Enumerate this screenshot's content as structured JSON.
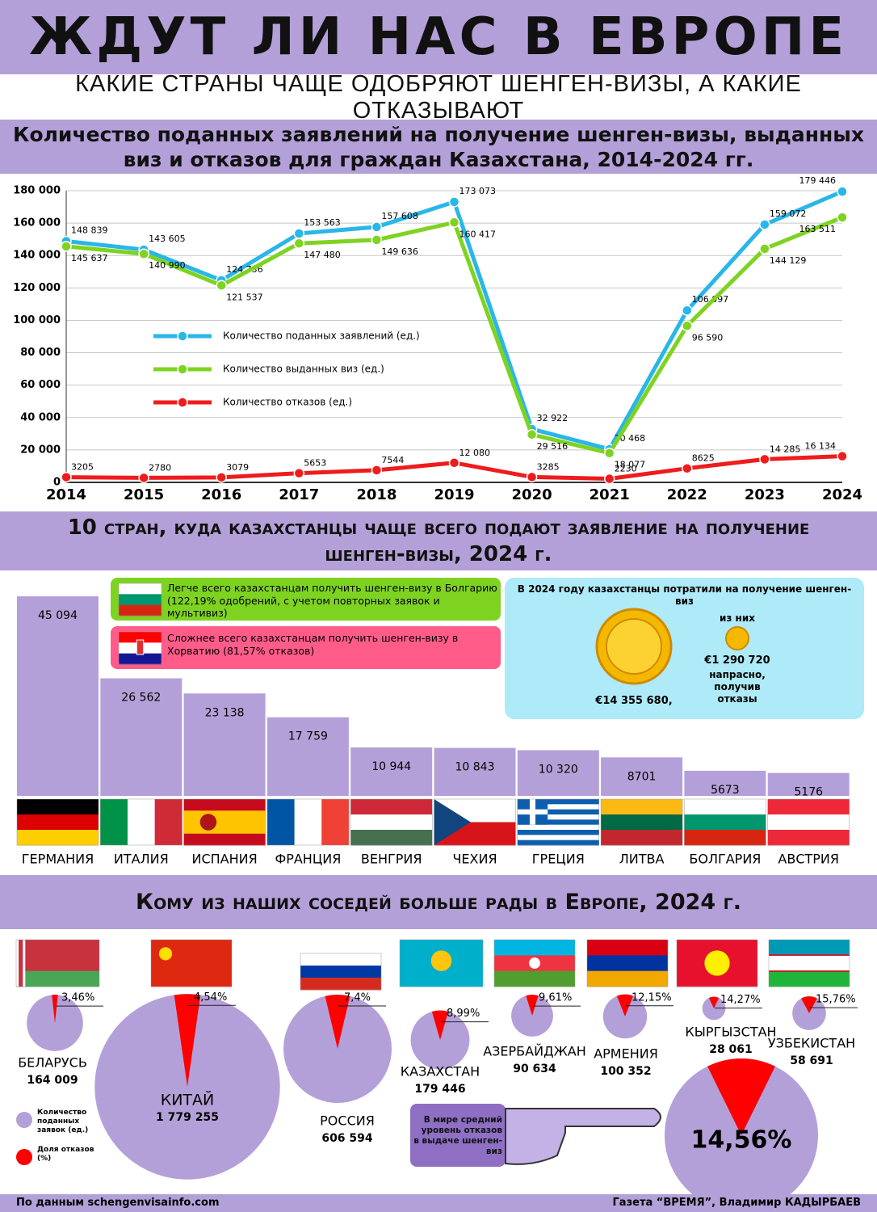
{
  "header": {
    "title": "ЖДУТ ЛИ НАС В ЕВРОПЕ",
    "subtitle": "КАКИЕ СТРАНЫ ЧАЩЕ ОДОБРЯЮТ ШЕНГЕН-ВИЗЫ, А КАКИЕ ОТКАЗЫВАЮТ"
  },
  "chart_data": [
    {
      "type": "line",
      "title": "Количество поданных заявлений на получение шенген-визы, выданных виз и отказов для граждан Казахстана, 2014-2024 гг.",
      "categories": [
        "2014",
        "2015",
        "2016",
        "2017",
        "2018",
        "2019",
        "2020",
        "2021",
        "2022",
        "2023",
        "2024"
      ],
      "series": [
        {
          "name": "Количество поданных заявлений (ед.)",
          "color": "#29b6e8",
          "values": [
            148839,
            143605,
            124736,
            153563,
            157608,
            173073,
            32922,
            20468,
            106097,
            159072,
            179446
          ],
          "value_labels": [
            "148 839",
            "143 605",
            "124 736",
            "153 563",
            "157 608",
            "173 073",
            "32 922",
            "20 468",
            "106 097",
            "159 072",
            "179 446"
          ]
        },
        {
          "name": "Количество выданных виз (ед.)",
          "color": "#7ed321",
          "values": [
            145637,
            140990,
            121537,
            147480,
            149636,
            160417,
            29516,
            18077,
            96590,
            144129,
            163511
          ],
          "value_labels": [
            "145 637",
            "140 990",
            "121 537",
            "147 480",
            "149 636",
            "160 417",
            "29 516",
            "18 077",
            "96 590",
            "144 129",
            "163 511"
          ]
        },
        {
          "name": "Количество отказов (ед.)",
          "color": "#ee1c1c",
          "values": [
            3205,
            2780,
            3079,
            5653,
            7544,
            12080,
            3285,
            2230,
            8625,
            14285,
            16134
          ],
          "value_labels": [
            "3205",
            "2780",
            "3079",
            "5653",
            "7544",
            "12 080",
            "3285",
            "2230",
            "8625",
            "14 285",
            "16 134"
          ]
        }
      ],
      "ylim": [
        0,
        180000
      ],
      "yticks": [
        0,
        {
          "value": 20000,
          "label": "20 000"
        },
        {
          "value": 40000,
          "label": "40 000"
        },
        {
          "value": 60000,
          "label": "60 000"
        },
        {
          "value": 80000,
          "label": "80 000"
        },
        {
          "value": 100000,
          "label": "100 000"
        },
        {
          "value": 120000,
          "label": "120 000"
        },
        {
          "value": 140000,
          "label": "140 000"
        },
        {
          "value": 160000,
          "label": "160 000"
        },
        {
          "value": 180000,
          "label": "180 000"
        }
      ],
      "grid": true
    },
    {
      "type": "bar",
      "title": "10 стран, куда казахстанцы чаще всего подают заявление на получение шенген-визы, 2024 г.",
      "categories": [
        "ГЕРМАНИЯ",
        "ИТАЛИЯ",
        "ИСПАНИЯ",
        "ФРАНЦИЯ",
        "ВЕНГРИЯ",
        "ЧЕХИЯ",
        "ГРЕЦИЯ",
        "ЛИТВА",
        "БОЛГАРИЯ",
        "АВСТРИЯ"
      ],
      "values": [
        45094,
        26562,
        23138,
        17759,
        10944,
        10843,
        10320,
        8701,
        5673,
        5176
      ],
      "value_labels": [
        "45 094",
        "26 562",
        "23 138",
        "17 759",
        "10 944",
        "10 843",
        "10 320",
        "8701",
        "5673",
        "5176"
      ],
      "color": "#b4a0d8"
    },
    {
      "type": "pie",
      "title": "Кому из наших соседей больше рады в Европе, 2024 г.",
      "categories": [
        "БЕЛАРУСЬ",
        "КИТАЙ",
        "РОССИЯ",
        "КАЗАХСТАН",
        "АЗЕРБАЙДЖАН",
        "АРМЕНИЯ",
        "КЫРГЫЗСТАН",
        "УЗБЕКИСТАН"
      ],
      "series": [
        {
          "name": "Количество поданных заявок (ед.)",
          "color": "#b4a0d8",
          "values": [
            164009,
            1779255,
            606594,
            179446,
            90634,
            100352,
            28061,
            58691
          ],
          "value_labels": [
            "164 009",
            "1 779 255",
            "606 594",
            "179 446",
            "90 634",
            "100 352",
            "28 061",
            "58 691"
          ]
        },
        {
          "name": "Доля отказов (%)",
          "color": "#ff0000",
          "values": [
            3.46,
            4.54,
            7.4,
            8.99,
            9.61,
            12.15,
            14.27,
            15.76
          ],
          "value_labels": [
            "3,46%",
            "4,54%",
            "7,4%",
            "8,99%",
            "9,61%",
            "12,15%",
            "14,27%",
            "15,76%"
          ]
        }
      ],
      "annotation": {
        "text": "В мире средний уровень отказов в выдаче шенген-виз",
        "value": 14.56,
        "value_label": "14,56%"
      }
    }
  ],
  "callouts": {
    "easiest": "Легче всего казахстанцам получить шенген-визу в Болгарию (122,19% одобрений, с учетом повторных заявок и мультивиз)",
    "hardest": "Сложнее всего казахстанцам получить шенген-визу в Хорватию (81,57% отказов)",
    "spending": {
      "title": "В 2024 году казахстанцы потратили на получение шенген-виз",
      "total": "€14 355 680,",
      "of_which": "из них",
      "wasted": "€1 290 720",
      "wasted_note": "напрасно, получив отказы"
    }
  },
  "footer": {
    "source": "По данным schengenvisainfo.com",
    "credit": "Газета “ВРЕМЯ”, Владимир КАДЫРБАЕВ"
  }
}
